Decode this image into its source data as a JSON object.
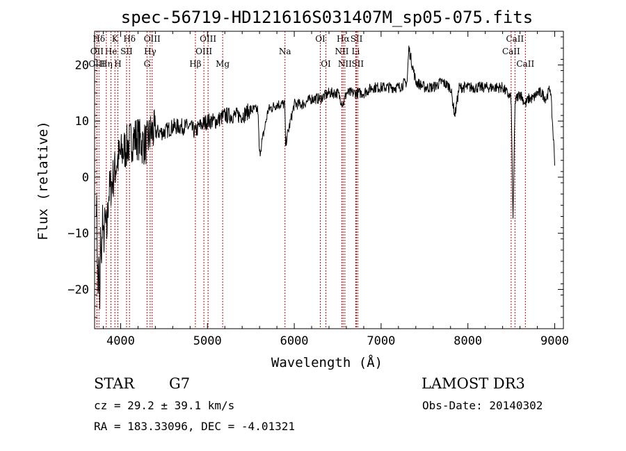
{
  "chart_data": {
    "type": "line",
    "title": "spec-56719-HD121616S031407M_sp05-075.fits",
    "xlabel": "Wavelength (Å)",
    "ylabel": "Flux (relative)",
    "xlim": [
      3700,
      9100
    ],
    "ylim": [
      -27,
      26
    ],
    "xticks": [
      4000,
      5000,
      6000,
      7000,
      8000,
      9000
    ],
    "yticks": [
      -20,
      -10,
      0,
      10,
      20
    ],
    "ytick_labels": [
      "−20",
      "−10",
      "0",
      "10",
      "20"
    ],
    "series": [
      {
        "name": "flux",
        "x": [
          3720,
          3740,
          3750,
          3760,
          3770,
          3780,
          3790,
          3800,
          3820,
          3840,
          3860,
          3880,
          3900,
          3930,
          3960,
          4000,
          4050,
          4100,
          4150,
          4200,
          4250,
          4300,
          4350,
          4400,
          4500,
          4600,
          4700,
          4800,
          4860,
          4900,
          5000,
          5100,
          5200,
          5300,
          5400,
          5500,
          5580,
          5600,
          5700,
          5800,
          5890,
          5900,
          6000,
          6100,
          6200,
          6300,
          6400,
          6500,
          6563,
          6600,
          6700,
          6800,
          6900,
          7000,
          7100,
          7200,
          7300,
          7320,
          7400,
          7500,
          7600,
          7700,
          7800,
          7850,
          7900,
          8000,
          8100,
          8200,
          8300,
          8400,
          8498,
          8520,
          8542,
          8560,
          8600,
          8662,
          8700,
          8750,
          8800,
          8850,
          8900,
          8950,
          9000
        ],
        "y": [
          -3,
          -21,
          -15,
          -25,
          -8,
          -17,
          -5,
          -12,
          -8,
          -10,
          -3,
          -2,
          -1,
          1,
          3,
          4,
          5,
          6,
          7,
          7,
          6,
          6,
          8,
          8,
          8,
          9,
          9,
          9,
          8,
          9,
          10,
          10,
          11,
          11,
          11,
          12,
          12,
          4,
          12,
          13,
          13,
          6,
          13,
          13,
          14,
          14,
          15,
          15,
          13,
          15,
          15,
          15,
          16,
          16,
          16,
          16,
          17,
          23,
          17,
          16,
          16,
          17,
          16,
          11,
          16,
          16,
          16,
          16,
          16,
          16,
          14,
          -8,
          13,
          14,
          15,
          13,
          14,
          14,
          15,
          15,
          14,
          16,
          3
        ]
      }
    ],
    "line_markers": [
      {
        "label": "Hδ",
        "wave": 3750,
        "row": 0
      },
      {
        "label": "OII",
        "wave": 3727,
        "row": 1
      },
      {
        "label": "OIII",
        "wave": 3727,
        "row": 2
      },
      {
        "label": "K",
        "wave": 3934,
        "row": 0
      },
      {
        "label": "He",
        "wave": 3889,
        "row": 1
      },
      {
        "label": "Hη",
        "wave": 3835,
        "row": 2
      },
      {
        "label": "H",
        "wave": 3968,
        "row": 2
      },
      {
        "label": "SII",
        "wave": 4068,
        "row": 1
      },
      {
        "label": "Hδ",
        "wave": 4102,
        "row": 0
      },
      {
        "label": "OIII",
        "wave": 4363,
        "row": 0
      },
      {
        "label": "Hγ",
        "wave": 4340,
        "row": 1
      },
      {
        "label": "G",
        "wave": 4304,
        "row": 2
      },
      {
        "label": "Hβ",
        "wave": 4861,
        "row": 2
      },
      {
        "label": "OIII",
        "wave": 5007,
        "row": 0
      },
      {
        "label": "OIII",
        "wave": 4959,
        "row": 1
      },
      {
        "label": "Mg",
        "wave": 5175,
        "row": 2
      },
      {
        "label": "Na",
        "wave": 5893,
        "row": 1
      },
      {
        "label": "OI",
        "wave": 6300,
        "row": 0
      },
      {
        "label": "OI",
        "wave": 6364,
        "row": 2
      },
      {
        "label": "Hα",
        "wave": 6563,
        "row": 0
      },
      {
        "label": "NII",
        "wave": 6548,
        "row": 1
      },
      {
        "label": "NII",
        "wave": 6583,
        "row": 2
      },
      {
        "label": "SII",
        "wave": 6717,
        "row": 0
      },
      {
        "label": "Li",
        "wave": 6708,
        "row": 1
      },
      {
        "label": "SII",
        "wave": 6731,
        "row": 2
      },
      {
        "label": "CaII",
        "wave": 8542,
        "row": 0
      },
      {
        "label": "CaII",
        "wave": 8498,
        "row": 1
      },
      {
        "label": "CaII",
        "wave": 8662,
        "row": 2
      }
    ]
  },
  "info": {
    "object_type": "STAR",
    "subclass": "G7",
    "survey": "LAMOST DR3",
    "cz": "cz = 29.2 ± 39.1 km/s",
    "obs_date": "Obs-Date: 20140302",
    "coords": "RA = 183.33096, DEC =  -4.01321"
  },
  "colors": {
    "line": "#000000",
    "marker": "#cc0000",
    "background": "#ffffff"
  }
}
